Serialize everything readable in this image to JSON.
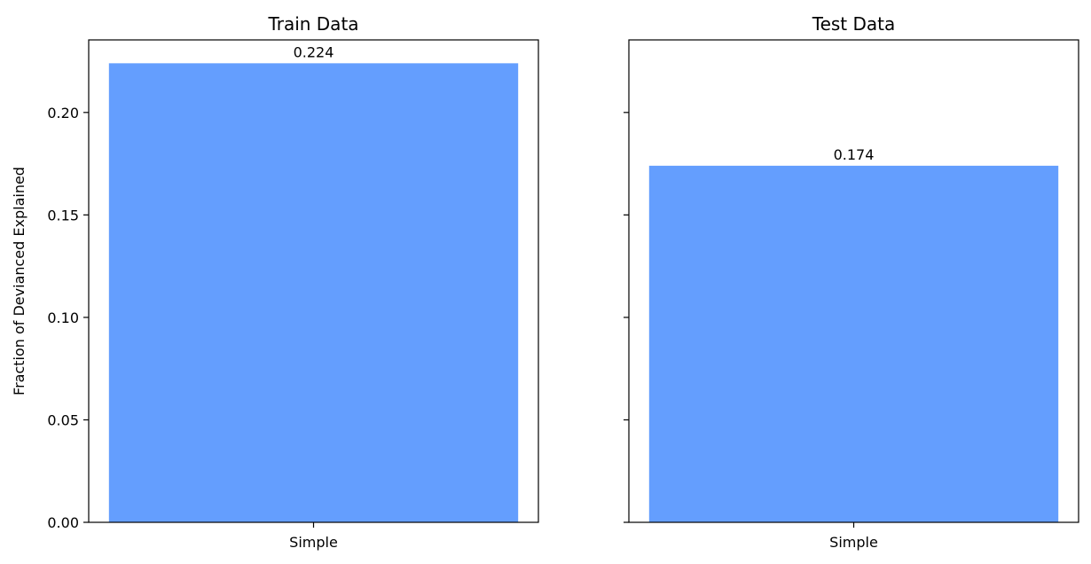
{
  "chart_data": [
    {
      "type": "bar",
      "title": "Train Data",
      "ylabel": "Fraction of Devianced Explained",
      "xlabel": "",
      "categories": [
        "Simple"
      ],
      "values": [
        0.224
      ],
      "data_labels": [
        "0.224"
      ],
      "ylim": [
        0,
        0.2354
      ],
      "yticks": [
        0.0,
        0.05,
        0.1,
        0.15,
        0.2
      ],
      "ytick_labels": [
        "0.00",
        "0.05",
        "0.10",
        "0.15",
        "0.20"
      ],
      "color": "#649efe",
      "grid": false
    },
    {
      "type": "bar",
      "title": "Test Data",
      "ylabel": "",
      "xlabel": "",
      "categories": [
        "Simple"
      ],
      "values": [
        0.174
      ],
      "data_labels": [
        "0.174"
      ],
      "ylim": [
        0,
        0.2354
      ],
      "yticks": [
        0.0,
        0.05,
        0.1,
        0.15,
        0.2
      ],
      "ytick_labels": [
        "",
        "",
        "",
        "",
        ""
      ],
      "color": "#649efe",
      "grid": false
    }
  ]
}
